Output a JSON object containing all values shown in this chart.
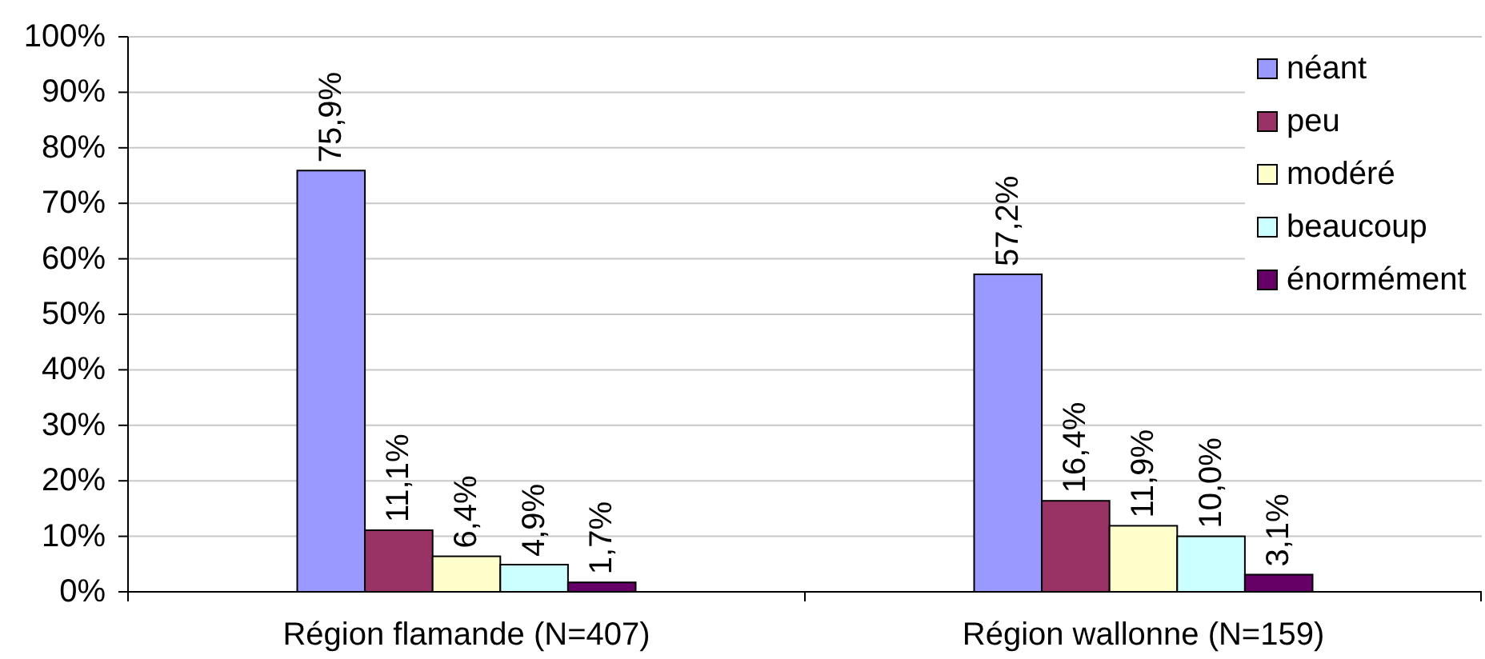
{
  "chart_data": {
    "type": "bar",
    "categories": [
      "Région flamande (N=407)",
      "Région wallonne (N=159)"
    ],
    "series": [
      {
        "name": "néant",
        "color": "#9999ff",
        "values": [
          75.9,
          57.2
        ],
        "value_labels": [
          "75,9%",
          "57,2%"
        ]
      },
      {
        "name": "peu",
        "color": "#993366",
        "values": [
          11.1,
          16.4
        ],
        "value_labels": [
          "11,1%",
          "16,4%"
        ]
      },
      {
        "name": "modéré",
        "color": "#ffffcc",
        "values": [
          6.4,
          11.9
        ],
        "value_labels": [
          "6,4%",
          "11,9%"
        ]
      },
      {
        "name": "beaucoup",
        "color": "#ccffff",
        "values": [
          4.9,
          10.0
        ],
        "value_labels": [
          "4,9%",
          "10,0%"
        ]
      },
      {
        "name": "énormément",
        "color": "#660066",
        "values": [
          1.7,
          3.1
        ],
        "value_labels": [
          "1,7%",
          "3,1%"
        ]
      }
    ],
    "ylim": [
      0,
      100
    ],
    "yticks": [
      {
        "value": 0,
        "label": "0%"
      },
      {
        "value": 10,
        "label": "10%"
      },
      {
        "value": 20,
        "label": "20%"
      },
      {
        "value": 30,
        "label": "30%"
      },
      {
        "value": 40,
        "label": "40%"
      },
      {
        "value": 50,
        "label": "50%"
      },
      {
        "value": 60,
        "label": "60%"
      },
      {
        "value": 70,
        "label": "70%"
      },
      {
        "value": 80,
        "label": "80%"
      },
      {
        "value": 90,
        "label": "90%"
      },
      {
        "value": 100,
        "label": "100%"
      }
    ],
    "grid": "y",
    "legend": "top right"
  }
}
